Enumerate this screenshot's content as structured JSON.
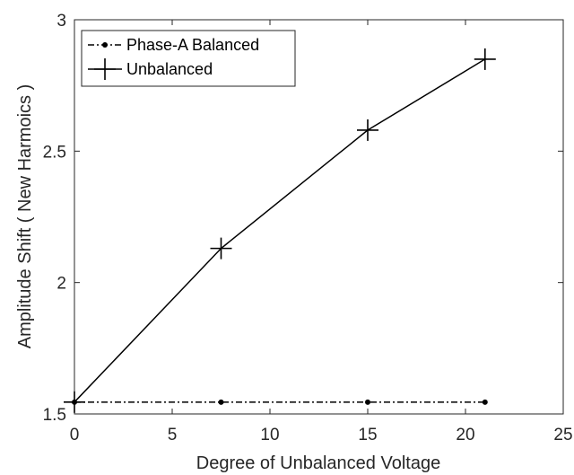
{
  "chart_data": {
    "type": "line",
    "title": "",
    "xlabel": "Degree of Unbalanced Voltage",
    "ylabel": "Amplitude Shift ( New Harmoics )",
    "xlim": [
      0,
      25
    ],
    "ylim": [
      1.5,
      3
    ],
    "xticks": [
      "0",
      "5",
      "10",
      "15",
      "20",
      "25"
    ],
    "yticks": [
      "1.5",
      "2",
      "2.5",
      "3"
    ],
    "grid": false,
    "legend_position": "top-left",
    "series": [
      {
        "name": "Phase-A Balanced",
        "style": "dash-dot",
        "marker": "dot",
        "x": [
          0,
          7.5,
          15,
          21
        ],
        "y": [
          1.545,
          1.545,
          1.545,
          1.545
        ]
      },
      {
        "name": "Unbalanced",
        "style": "solid",
        "marker": "plus",
        "x": [
          0,
          7.5,
          15,
          21
        ],
        "y": [
          1.545,
          2.13,
          2.58,
          2.85
        ]
      }
    ],
    "colors": {
      "line": "#000000",
      "axis": "#262626"
    }
  }
}
